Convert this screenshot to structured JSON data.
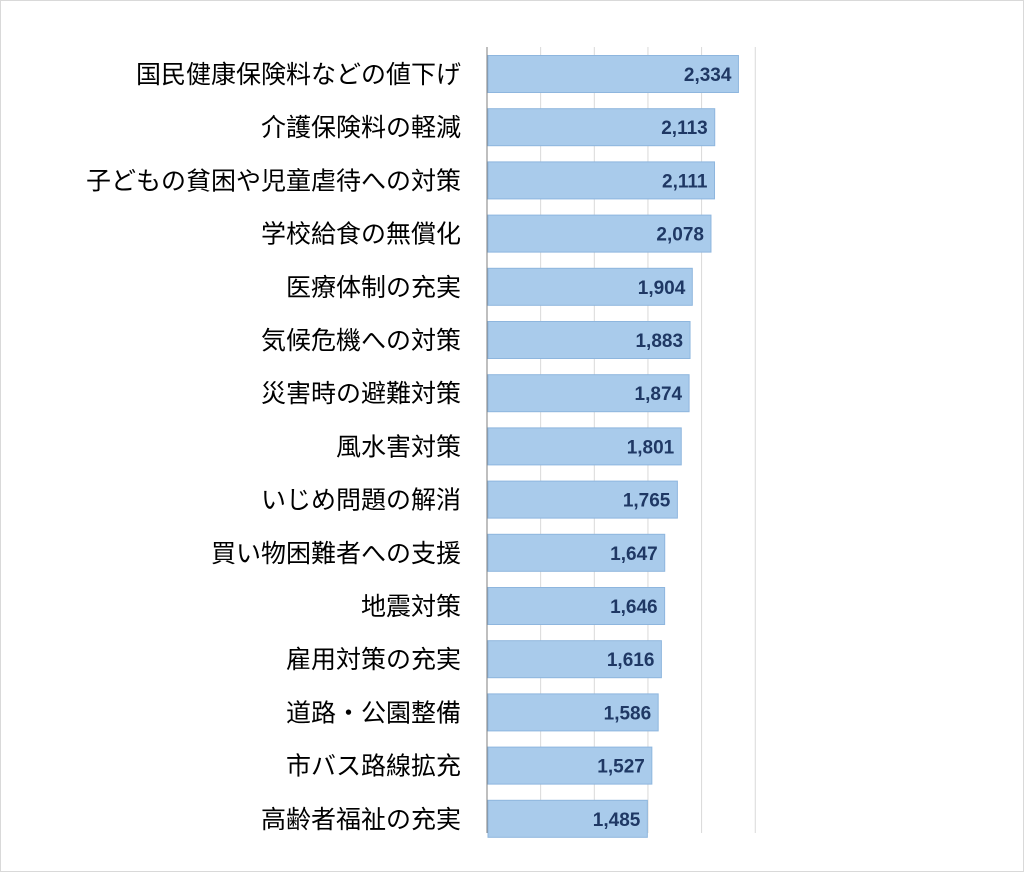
{
  "chart_data": {
    "type": "bar",
    "orientation": "horizontal",
    "title": "",
    "xlabel": "",
    "ylabel": "",
    "categories": [
      "国民健康保険料などの値下げ",
      "介護保険料の軽減",
      "子どもの貧困や児童虐待への対策",
      "学校給食の無償化",
      "医療体制の充実",
      "気候危機への対策",
      "災害時の避難対策",
      "風水害対策",
      "いじめ問題の解消",
      "買い物困難者への支援",
      "地震対策",
      "雇用対策の充実",
      "道路・公園整備",
      "市バス路線拡充",
      "高齢者福祉の充実"
    ],
    "values": [
      2334,
      2113,
      2111,
      2078,
      1904,
      1883,
      1874,
      1801,
      1765,
      1647,
      1646,
      1616,
      1586,
      1527,
      1485
    ],
    "value_labels": [
      "2,334",
      "2,113",
      "2,111",
      "2,078",
      "1,904",
      "1,883",
      "1,874",
      "1,801",
      "1,765",
      "1,647",
      "1,646",
      "1,616",
      "1,586",
      "1,527",
      "1,485"
    ],
    "xlim": [
      0,
      2500
    ],
    "x_grid_step": 500,
    "grid": true,
    "legend": "none",
    "colors": {
      "bar_fill": "#a9cbeb",
      "bar_stroke": "#8eb6de",
      "value_label": "#1f3864",
      "category_label": "#000000",
      "gridline": "#d9d9d9"
    }
  }
}
